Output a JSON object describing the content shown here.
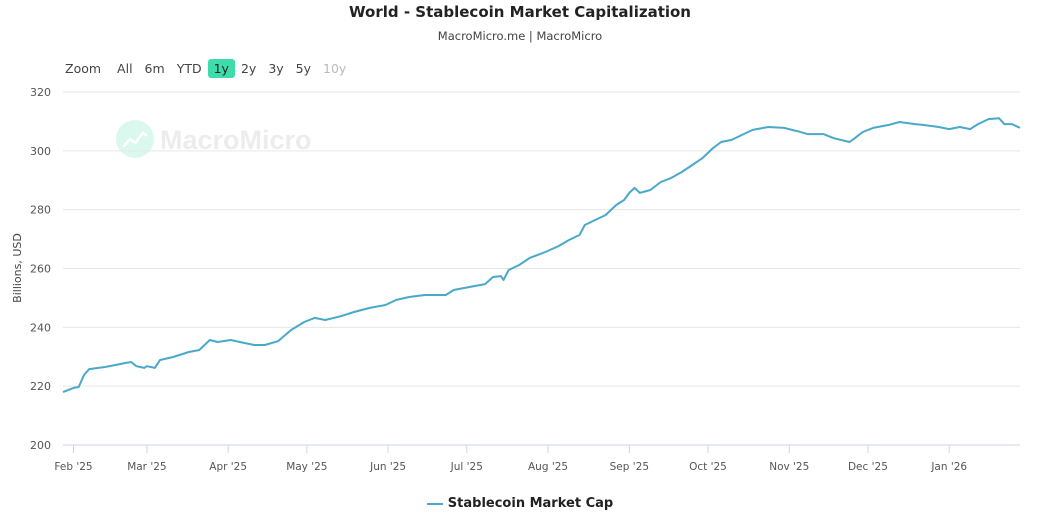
{
  "chart_data": {
    "type": "line",
    "title": "World - Stablecoin Market Capitalization",
    "subtitle": "MacroMicro.me | MacroMicro",
    "ylabel": "Billions, USD",
    "xlabel": "",
    "ylim": [
      200,
      320
    ],
    "yticks": [
      200,
      220,
      240,
      260,
      280,
      300,
      320
    ],
    "xlim": [
      "2025-01-28",
      "2026-01-28"
    ],
    "xticks": [
      {
        "date": "2025-02-01",
        "label": "Feb '25"
      },
      {
        "date": "2025-03-01",
        "label": "Mar '25"
      },
      {
        "date": "2025-04-01",
        "label": "Apr '25"
      },
      {
        "date": "2025-05-01",
        "label": "May '25"
      },
      {
        "date": "2025-06-01",
        "label": "Jun '25"
      },
      {
        "date": "2025-07-01",
        "label": "Jul '25"
      },
      {
        "date": "2025-08-01",
        "label": "Aug '25"
      },
      {
        "date": "2025-09-01",
        "label": "Sep '25"
      },
      {
        "date": "2025-10-01",
        "label": "Oct '25"
      },
      {
        "date": "2025-11-01",
        "label": "Nov '25"
      },
      {
        "date": "2025-12-01",
        "label": "Dec '25"
      },
      {
        "date": "2026-01-01",
        "label": "Jan '26"
      }
    ],
    "grid": true,
    "legend_position": "bottom",
    "series": [
      {
        "name": "Stablecoin Market Cap",
        "color": "#4aa8c9",
        "points": [
          [
            "2025-01-28",
            218.0
          ],
          [
            "2025-02-01",
            219.4
          ],
          [
            "2025-02-03",
            219.7
          ],
          [
            "2025-02-05",
            223.8
          ],
          [
            "2025-02-07",
            225.8
          ],
          [
            "2025-02-13",
            226.5
          ],
          [
            "2025-02-17",
            227.2
          ],
          [
            "2025-02-21",
            227.9
          ],
          [
            "2025-02-23",
            228.2
          ],
          [
            "2025-02-25",
            226.8
          ],
          [
            "2025-02-28",
            226.2
          ],
          [
            "2025-03-01",
            226.8
          ],
          [
            "2025-03-04",
            226.2
          ],
          [
            "2025-03-06",
            228.9
          ],
          [
            "2025-03-11",
            229.9
          ],
          [
            "2025-03-17",
            231.6
          ],
          [
            "2025-03-21",
            232.3
          ],
          [
            "2025-03-25",
            235.7
          ],
          [
            "2025-03-28",
            235.0
          ],
          [
            "2025-04-02",
            235.7
          ],
          [
            "2025-04-07",
            234.7
          ],
          [
            "2025-04-11",
            234.0
          ],
          [
            "2025-04-15",
            234.0
          ],
          [
            "2025-04-20",
            235.3
          ],
          [
            "2025-04-25",
            239.1
          ],
          [
            "2025-04-30",
            241.8
          ],
          [
            "2025-05-04",
            243.2
          ],
          [
            "2025-05-08",
            242.5
          ],
          [
            "2025-05-14",
            243.8
          ],
          [
            "2025-05-19",
            245.2
          ],
          [
            "2025-05-25",
            246.6
          ],
          [
            "2025-05-31",
            247.6
          ],
          [
            "2025-06-04",
            249.3
          ],
          [
            "2025-06-09",
            250.3
          ],
          [
            "2025-06-15",
            251.0
          ],
          [
            "2025-06-23",
            251.0
          ],
          [
            "2025-06-26",
            252.7
          ],
          [
            "2025-07-02",
            253.7
          ],
          [
            "2025-07-08",
            254.7
          ],
          [
            "2025-07-11",
            257.1
          ],
          [
            "2025-07-14",
            257.4
          ],
          [
            "2025-07-15",
            256.1
          ],
          [
            "2025-07-17",
            259.5
          ],
          [
            "2025-07-21",
            261.2
          ],
          [
            "2025-07-25",
            263.6
          ],
          [
            "2025-07-31",
            265.6
          ],
          [
            "2025-08-05",
            267.6
          ],
          [
            "2025-08-09",
            269.7
          ],
          [
            "2025-08-13",
            271.4
          ],
          [
            "2025-08-15",
            274.8
          ],
          [
            "2025-08-19",
            276.5
          ],
          [
            "2025-08-23",
            278.2
          ],
          [
            "2025-08-27",
            281.6
          ],
          [
            "2025-08-30",
            283.3
          ],
          [
            "2025-09-01",
            285.7
          ],
          [
            "2025-09-03",
            287.4
          ],
          [
            "2025-09-05",
            285.7
          ],
          [
            "2025-09-09",
            286.7
          ],
          [
            "2025-09-13",
            289.4
          ],
          [
            "2025-09-17",
            290.8
          ],
          [
            "2025-09-21",
            292.8
          ],
          [
            "2025-09-25",
            295.2
          ],
          [
            "2025-09-29",
            297.6
          ],
          [
            "2025-10-03",
            301.0
          ],
          [
            "2025-10-06",
            303.0
          ],
          [
            "2025-10-10",
            303.7
          ],
          [
            "2025-10-14",
            305.4
          ],
          [
            "2025-10-18",
            307.1
          ],
          [
            "2025-10-24",
            308.1
          ],
          [
            "2025-10-30",
            307.8
          ],
          [
            "2025-11-04",
            306.7
          ],
          [
            "2025-11-08",
            305.7
          ],
          [
            "2025-11-14",
            305.7
          ],
          [
            "2025-11-18",
            304.3
          ],
          [
            "2025-11-24",
            303.0
          ],
          [
            "2025-11-26",
            304.3
          ],
          [
            "2025-11-29",
            306.4
          ],
          [
            "2025-12-03",
            307.8
          ],
          [
            "2025-12-09",
            308.8
          ],
          [
            "2025-12-13",
            309.8
          ],
          [
            "2025-12-19",
            309.1
          ],
          [
            "2025-12-22",
            308.8
          ],
          [
            "2025-12-28",
            308.1
          ],
          [
            "2026-01-01",
            307.4
          ],
          [
            "2026-01-05",
            308.1
          ],
          [
            "2026-01-09",
            307.4
          ],
          [
            "2026-01-12",
            309.1
          ],
          [
            "2026-01-16",
            310.8
          ],
          [
            "2026-01-20",
            311.1
          ],
          [
            "2026-01-22",
            309.1
          ],
          [
            "2026-01-25",
            309.1
          ],
          [
            "2026-01-28",
            307.8
          ]
        ]
      }
    ],
    "watermark": "MacroMicro"
  },
  "zoom": {
    "label": "Zoom",
    "buttons": [
      {
        "label": "All",
        "state": "normal"
      },
      {
        "label": "6m",
        "state": "normal"
      },
      {
        "label": "YTD",
        "state": "normal"
      },
      {
        "label": "1y",
        "state": "active"
      },
      {
        "label": "2y",
        "state": "normal"
      },
      {
        "label": "3y",
        "state": "normal"
      },
      {
        "label": "5y",
        "state": "normal"
      },
      {
        "label": "10y",
        "state": "disabled"
      }
    ],
    "active_color": "#3ddcaa"
  }
}
